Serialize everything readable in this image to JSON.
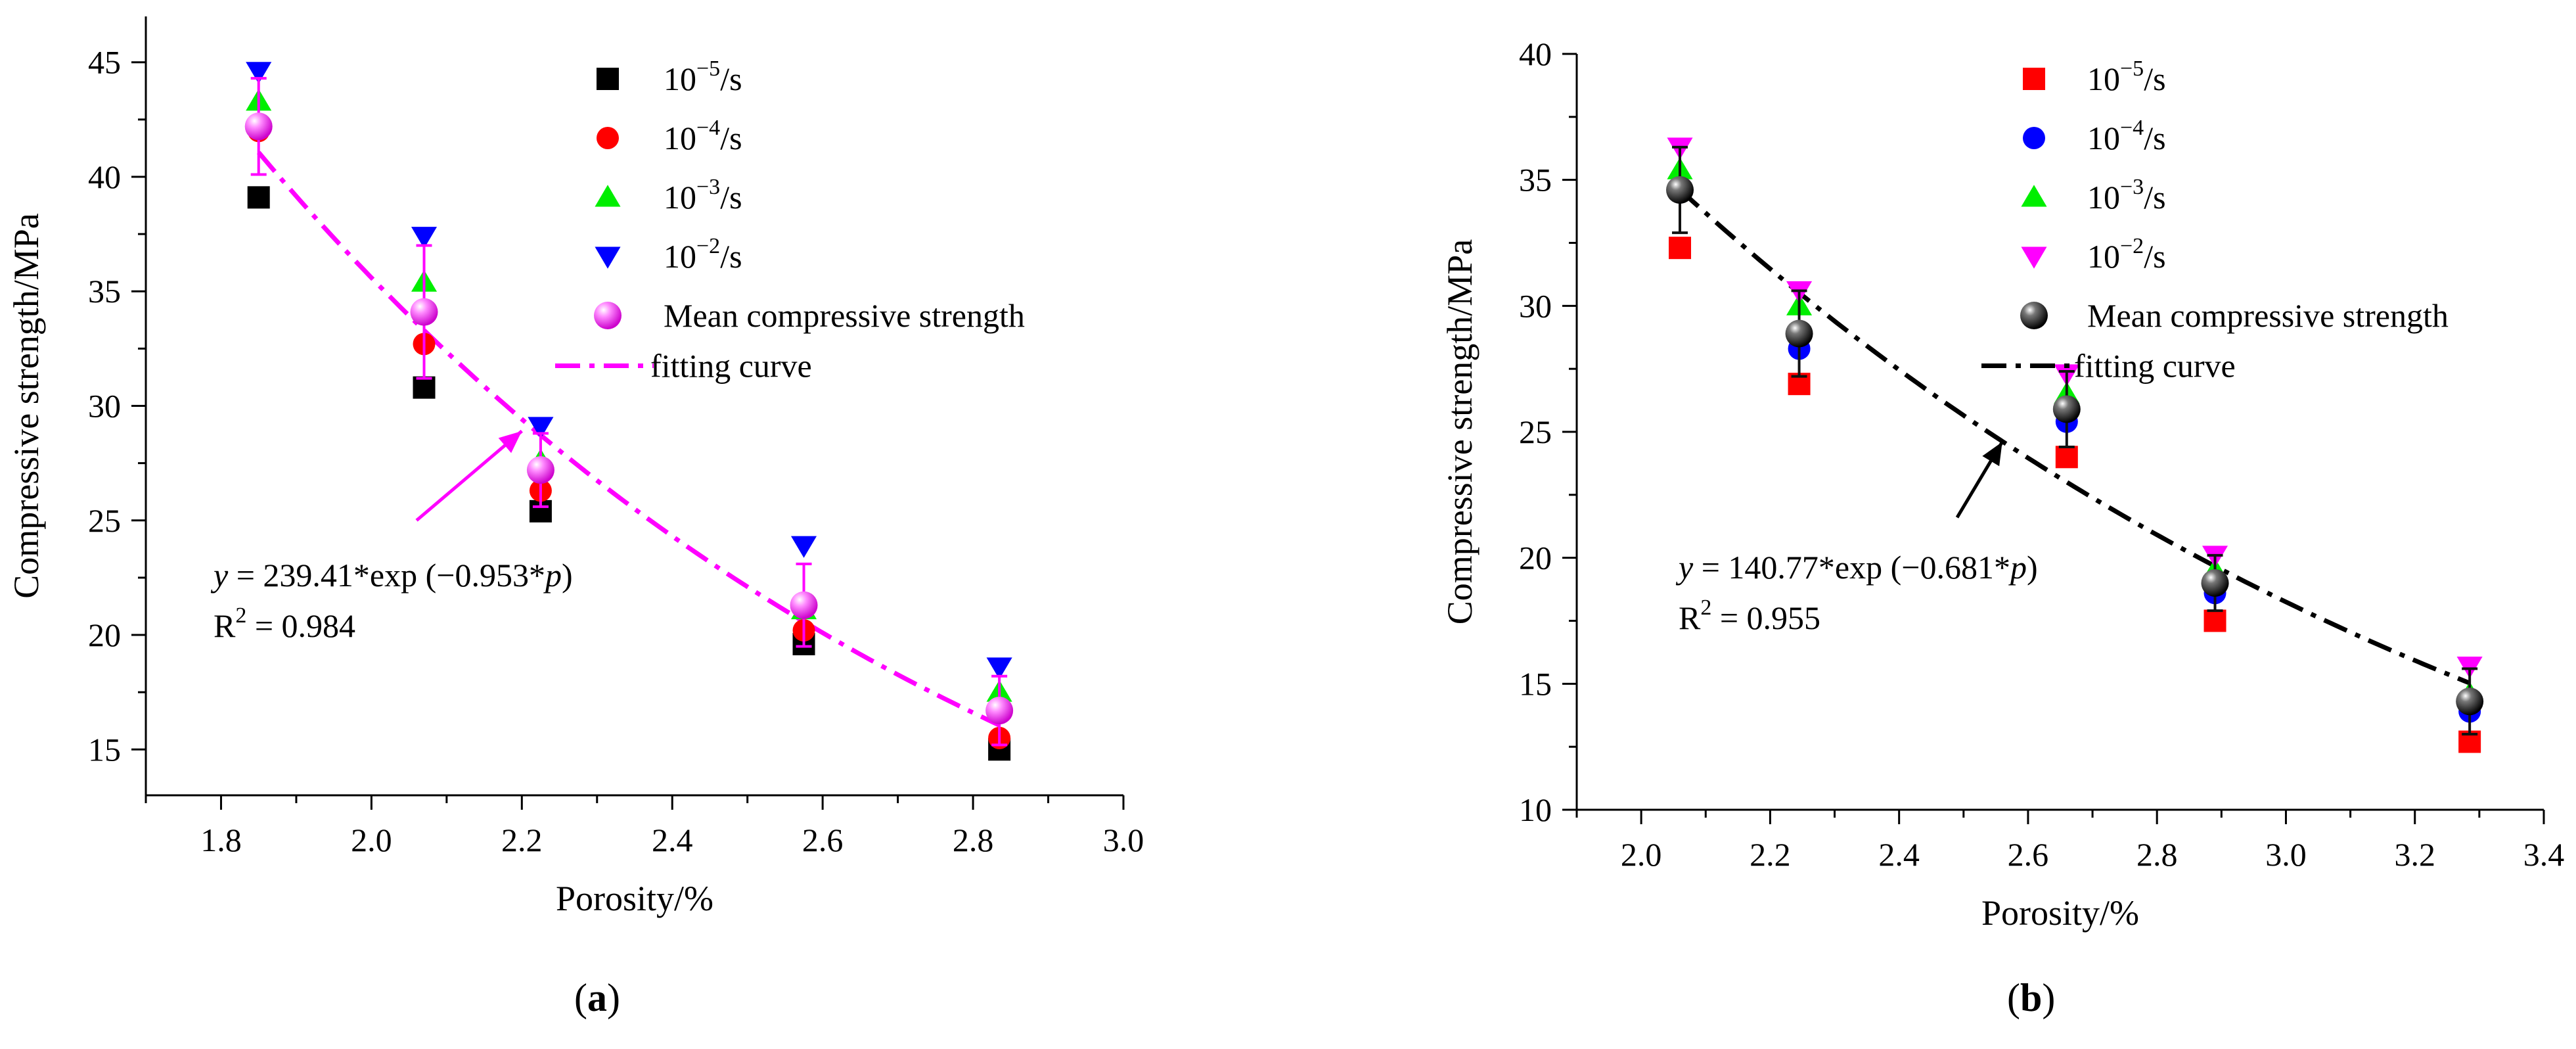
{
  "chart_data": [
    {
      "panel_label": "a",
      "type": "scatter",
      "xlabel": "Porosity/%",
      "ylabel": "Compressive strength/MPa",
      "xlim": [
        1.7,
        3.0
      ],
      "ylim": [
        13,
        47
      ],
      "xticks": [
        1.8,
        2.0,
        2.2,
        2.4,
        2.6,
        2.8,
        3.0
      ],
      "yticks": [
        15,
        20,
        25,
        30,
        35,
        40,
        45
      ],
      "x": [
        1.85,
        2.07,
        2.225,
        2.575,
        2.835
      ],
      "series": [
        {
          "name": "10^-5/s",
          "base": "10",
          "exp": "−5",
          "unit": "/s",
          "marker": "square",
          "color": "#000000",
          "values": [
            39.1,
            30.8,
            25.4,
            19.6,
            15.0
          ]
        },
        {
          "name": "10^-4/s",
          "base": "10",
          "exp": "−4",
          "unit": "/s",
          "marker": "circle",
          "color": "#ff0000",
          "values": [
            42.0,
            32.7,
            26.3,
            20.2,
            15.5
          ]
        },
        {
          "name": "10^-3/s",
          "base": "10",
          "exp": "−3",
          "unit": "/s",
          "marker": "triangle-up",
          "color": "#00ee00",
          "values": [
            43.3,
            35.4,
            27.6,
            21.1,
            17.5
          ]
        },
        {
          "name": "10^-2/s",
          "base": "10",
          "exp": "−2",
          "unit": "/s",
          "marker": "triangle-down",
          "color": "#0000ff",
          "values": [
            44.6,
            37.4,
            29.1,
            23.9,
            18.6
          ]
        }
      ],
      "mean": {
        "name": "Mean compressive strength",
        "color": "#ff00ff",
        "values": [
          42.2,
          34.1,
          27.2,
          21.3,
          16.7
        ],
        "errors": [
          2.1,
          2.9,
          1.6,
          1.8,
          1.5
        ]
      },
      "fit": {
        "name": "fitting curve",
        "a": 239.41,
        "b": -0.953,
        "x_range": [
          1.85,
          2.835
        ],
        "color": "#ff00ff",
        "style": "dash-dot"
      },
      "equation": {
        "y": "y",
        "lhs": " = 239.41*exp (−0.953*",
        "p": "p",
        "rhs": ")",
        "r2_label": "R",
        "r2_exp": "2",
        "r2_value": " = 0.984"
      },
      "arrow": {
        "from": [
          2.06,
          25.0
        ],
        "to": [
          2.2,
          28.9
        ]
      }
    },
    {
      "panel_label": "b",
      "type": "scatter",
      "xlabel": "Porosity/%",
      "ylabel": "Compressive strength/MPa",
      "xlim": [
        1.9,
        3.4
      ],
      "ylim": [
        10,
        40
      ],
      "xticks": [
        2.0,
        2.2,
        2.4,
        2.6,
        2.8,
        3.0,
        3.2,
        3.4
      ],
      "yticks": [
        10,
        15,
        20,
        25,
        30,
        35,
        40
      ],
      "x": [
        2.06,
        2.245,
        2.66,
        2.89,
        3.285
      ],
      "series": [
        {
          "name": "10^-5/s",
          "base": "10",
          "exp": "−5",
          "unit": "/s",
          "marker": "square",
          "color": "#ff0000",
          "values": [
            32.3,
            26.9,
            24.0,
            17.5,
            12.7
          ]
        },
        {
          "name": "10^-4/s",
          "base": "10",
          "exp": "−4",
          "unit": "/s",
          "marker": "circle",
          "color": "#0000ff",
          "values": [
            34.5,
            28.3,
            25.4,
            18.6,
            13.9
          ]
        },
        {
          "name": "10^-3/s",
          "base": "10",
          "exp": "−3",
          "unit": "/s",
          "marker": "triangle-up",
          "color": "#00ee00",
          "values": [
            35.4,
            30.0,
            26.5,
            19.5,
            14.6
          ]
        },
        {
          "name": "10^-2/s",
          "base": "10",
          "exp": "−2",
          "unit": "/s",
          "marker": "triangle-down",
          "color": "#ff00ff",
          "values": [
            36.3,
            30.6,
            27.3,
            20.1,
            15.7
          ]
        }
      ],
      "mean": {
        "name": "Mean compressive strength",
        "color": "#111111",
        "values": [
          34.6,
          28.9,
          25.9,
          19.0,
          14.3
        ],
        "errors": [
          1.7,
          1.7,
          1.5,
          1.1,
          1.3
        ]
      },
      "fit": {
        "name": "fitting curve",
        "a": 140.77,
        "b": -0.681,
        "x_range": [
          2.06,
          3.285
        ],
        "color": "#000000",
        "style": "dash-dot"
      },
      "equation": {
        "y": "y",
        "lhs": " = 140.77*exp (−0.681*",
        "p": "p",
        "rhs": ")",
        "r2_label": "R",
        "r2_exp": "2",
        "r2_value": " = 0.955"
      },
      "arrow": {
        "from": [
          2.49,
          21.6
        ],
        "to": [
          2.56,
          24.6
        ]
      }
    }
  ]
}
